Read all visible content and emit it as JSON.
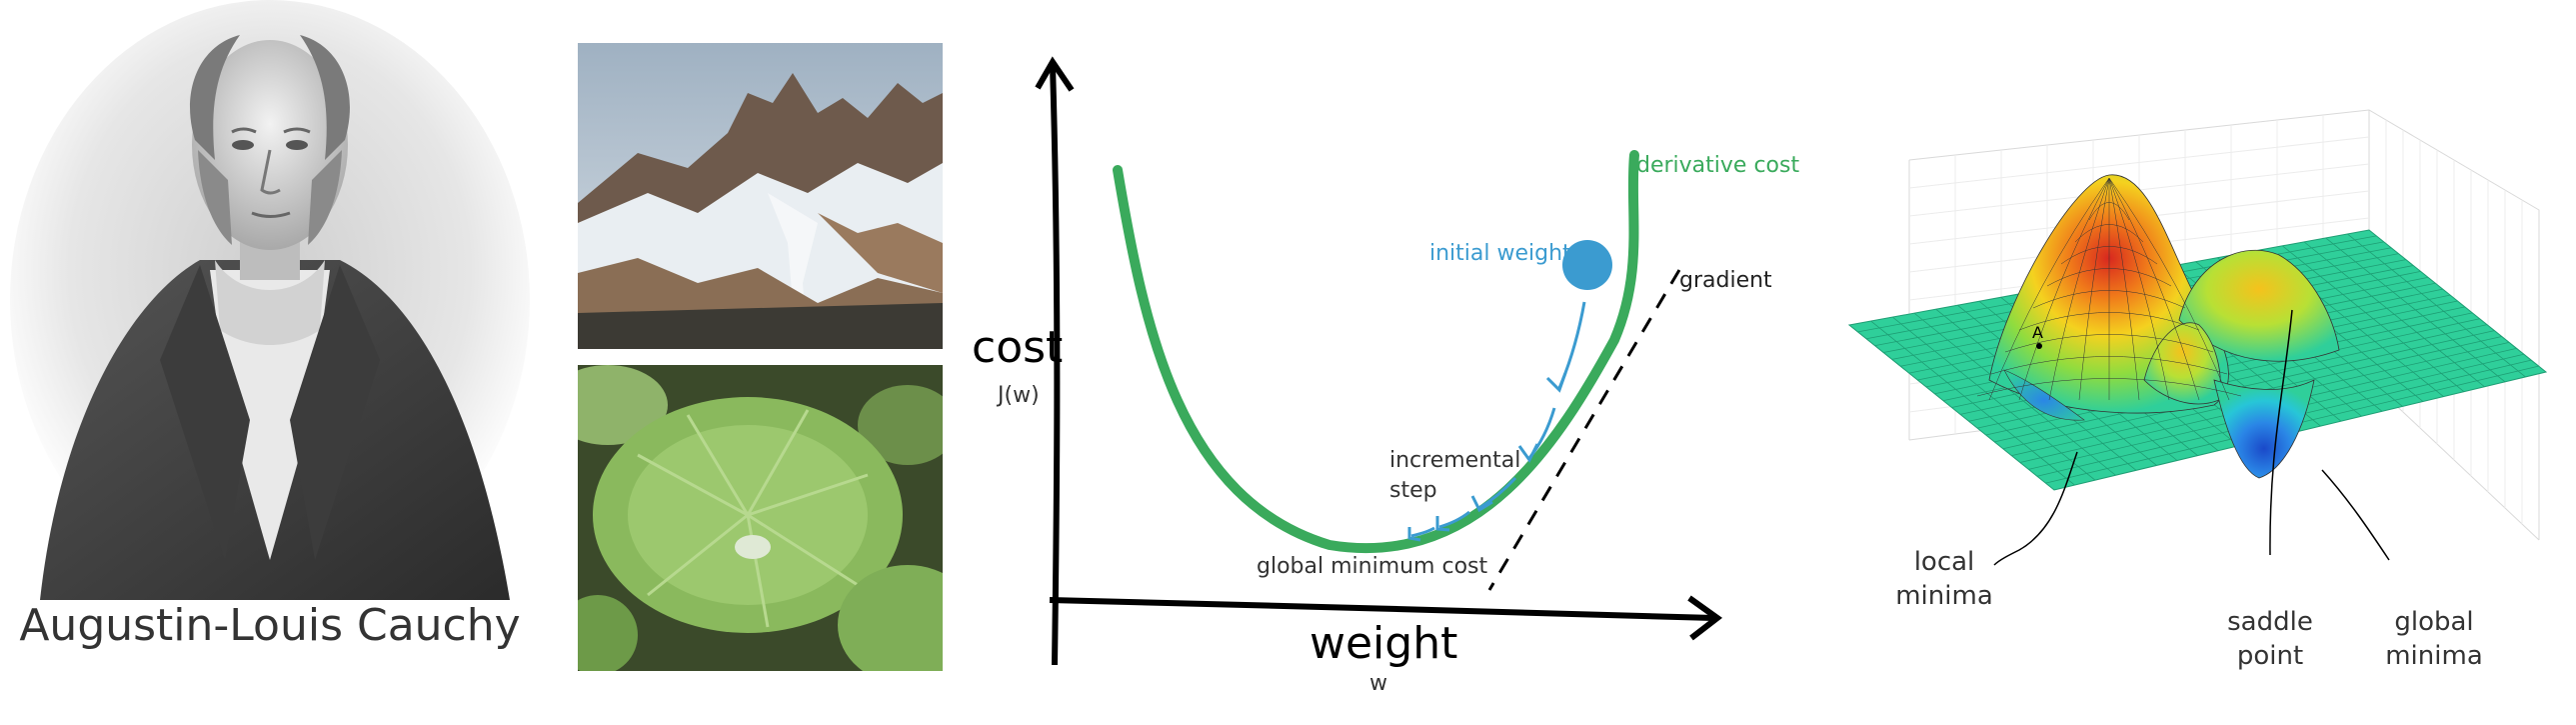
{
  "portrait": {
    "caption": "Augustin-Louis Cauchy"
  },
  "gradient_diagram": {
    "y_axis_label": "cost",
    "y_axis_sublabel": "J(w)",
    "x_axis_label": "weight",
    "x_axis_sublabel": "w",
    "derivative_label": "derivative cost",
    "initial_weight_label": "initial weight",
    "gradient_label": "gradient",
    "step_label_line1": "incremental",
    "step_label_line2": "step",
    "minimum_label": "global minimum cost",
    "colors": {
      "curve": "#3aaa5c",
      "steps": "#3b9bd0",
      "axis": "#000000"
    }
  },
  "surface_plot": {
    "point_label": "A",
    "local_minima_line1": "local",
    "local_minima_line2": "minima",
    "saddle_line1": "saddle",
    "saddle_line2": "point",
    "global_minima_line1": "global",
    "global_minima_line2": "minima",
    "colors": {
      "plane": "#2fcf9a",
      "high": "#d8281e",
      "low": "#1a49c9"
    }
  }
}
